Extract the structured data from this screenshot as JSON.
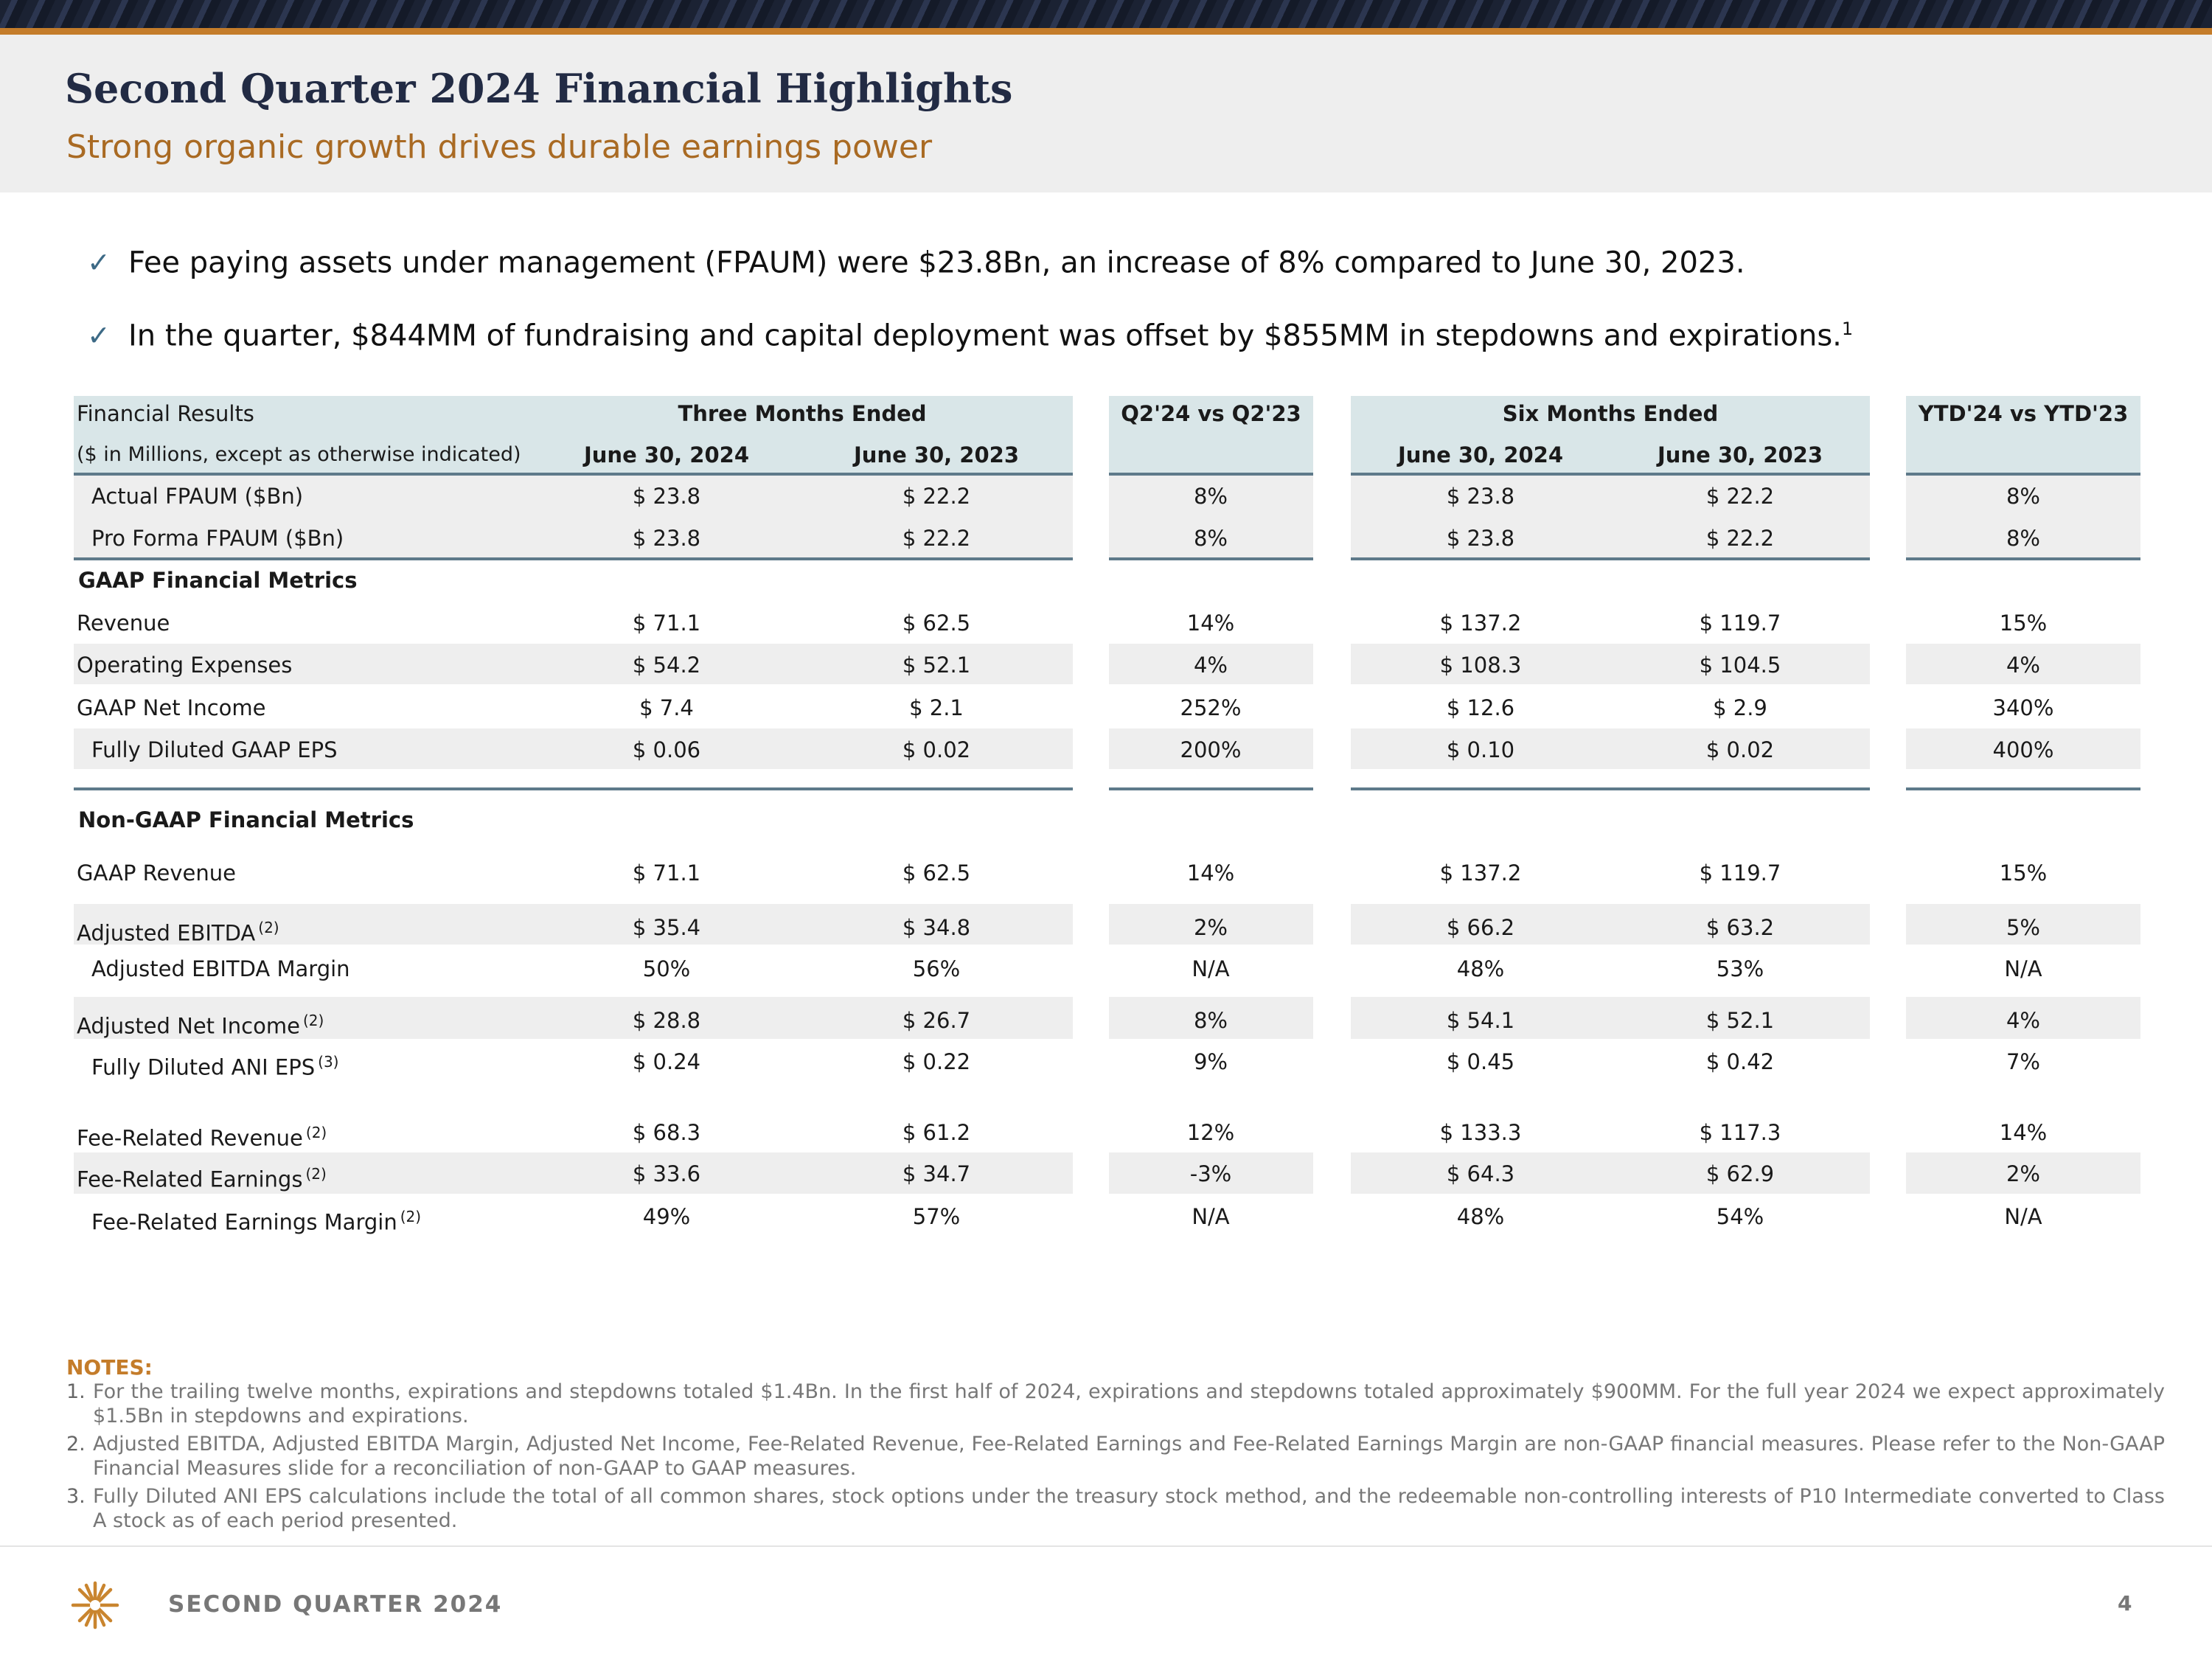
{
  "header": {
    "title": "Second Quarter 2024 Financial Highlights",
    "subtitle": "Strong organic growth drives durable earnings power"
  },
  "bullets": [
    {
      "text": "Fee paying assets under management (FPAUM) were $23.8Bn, an increase of 8% compared to June 30, 2023.",
      "sup": ""
    },
    {
      "text": "In the quarter, $844MM of fundraising and capital deployment was offset by $855MM in stepdowns and expirations.",
      "sup": "1"
    }
  ],
  "table": {
    "header_left": "Financial Results",
    "header_left_sub": "($ in Millions, except as otherwise indicated)",
    "three_months": "Three Months Ended",
    "q_vs": "Q2'24 vs Q2'23",
    "six_months": "Six Months Ended",
    "ytd_vs": "YTD'24 vs YTD'23",
    "col_2024": "June 30, 2024",
    "col_2023": "June 30, 2023",
    "sec_gaap": "GAAP Financial Metrics",
    "sec_nongaap": "Non-GAAP Financial Metrics",
    "rows": [
      {
        "label": "Actual FPAUM ($Bn)",
        "sup": "",
        "v": [
          "$ 23.8",
          "$ 22.2",
          "8%",
          "$ 23.8",
          "$ 22.2",
          "8%"
        ]
      },
      {
        "label": "Pro Forma FPAUM ($Bn)",
        "sup": "",
        "v": [
          "$ 23.8",
          "$ 22.2",
          "8%",
          "$ 23.8",
          "$ 22.2",
          "8%"
        ]
      },
      {
        "label": "Revenue",
        "sup": "",
        "v": [
          "$ 71.1",
          "$ 62.5",
          "14%",
          "$ 137.2",
          "$ 119.7",
          "15%"
        ]
      },
      {
        "label": "Operating Expenses",
        "sup": "",
        "v": [
          "$ 54.2",
          "$ 52.1",
          "4%",
          "$ 108.3",
          "$ 104.5",
          "4%"
        ]
      },
      {
        "label": "GAAP Net Income",
        "sup": "",
        "v": [
          "$ 7.4",
          "$ 2.1",
          "252%",
          "$ 12.6",
          "$ 2.9",
          "340%"
        ]
      },
      {
        "label": "Fully Diluted GAAP EPS",
        "sup": "",
        "v": [
          "$ 0.06",
          "$ 0.02",
          "200%",
          "$ 0.10",
          "$ 0.02",
          "400%"
        ]
      },
      {
        "label": "GAAP Revenue",
        "sup": "",
        "v": [
          "$ 71.1",
          "$ 62.5",
          "14%",
          "$ 137.2",
          "$ 119.7",
          "15%"
        ]
      },
      {
        "label": "Adjusted EBITDA",
        "sup": "(2)",
        "v": [
          "$ 35.4",
          "$ 34.8",
          "2%",
          "$ 66.2",
          "$ 63.2",
          "5%"
        ]
      },
      {
        "label": "Adjusted EBITDA Margin",
        "sup": "",
        "v": [
          "50%",
          "56%",
          "N/A",
          "48%",
          "53%",
          "N/A"
        ]
      },
      {
        "label": "Adjusted Net Income",
        "sup": "(2)",
        "v": [
          "$ 28.8",
          "$ 26.7",
          "8%",
          "$ 54.1",
          "$ 52.1",
          "4%"
        ]
      },
      {
        "label": "Fully Diluted ANI EPS",
        "sup": "(3)",
        "v": [
          "$ 0.24",
          "$ 0.22",
          "9%",
          "$ 0.45",
          "$ 0.42",
          "7%"
        ]
      },
      {
        "label": "Fee-Related Revenue",
        "sup": "(2)",
        "v": [
          "$ 68.3",
          "$ 61.2",
          "12%",
          "$ 133.3",
          "$ 117.3",
          "14%"
        ]
      },
      {
        "label": "Fee-Related Earnings",
        "sup": "(2)",
        "v": [
          "$ 33.6",
          "$ 34.7",
          "-3%",
          "$ 64.3",
          "$ 62.9",
          "2%"
        ]
      },
      {
        "label": "Fee-Related Earnings Margin",
        "sup": "(2)",
        "v": [
          "49%",
          "57%",
          "N/A",
          "48%",
          "54%",
          "N/A"
        ]
      }
    ]
  },
  "notes": {
    "heading": "NOTES:",
    "items": [
      {
        "num": "1.",
        "text": "For the trailing twelve months, expirations and stepdowns totaled $1.4Bn. In the first half of 2024, expirations and stepdowns totaled approximately $900MM. For the full year 2024 we expect approximately $1.5Bn in stepdowns and expirations."
      },
      {
        "num": "2.",
        "text": "Adjusted EBITDA, Adjusted EBITDA Margin, Adjusted Net Income, Fee-Related Revenue, Fee-Related Earnings and Fee-Related Earnings Margin are non-GAAP financial measures. Please refer to the Non-GAAP Financial Measures slide for a reconciliation of non-GAAP to GAAP measures."
      },
      {
        "num": "3.",
        "text": "Fully Diluted ANI EPS calculations include the total of all common shares, stock options under the treasury stock method, and the redeemable non-controlling interests of P10 Intermediate converted to Class A stock as of each period presented."
      }
    ]
  },
  "footer": {
    "label": "SECOND QUARTER 2024",
    "page": "4"
  },
  "colors": {
    "accent": "#c47c2a",
    "navy": "#222b44",
    "header_bg": "#d9e6e8",
    "rule": "#5e7a8a"
  }
}
